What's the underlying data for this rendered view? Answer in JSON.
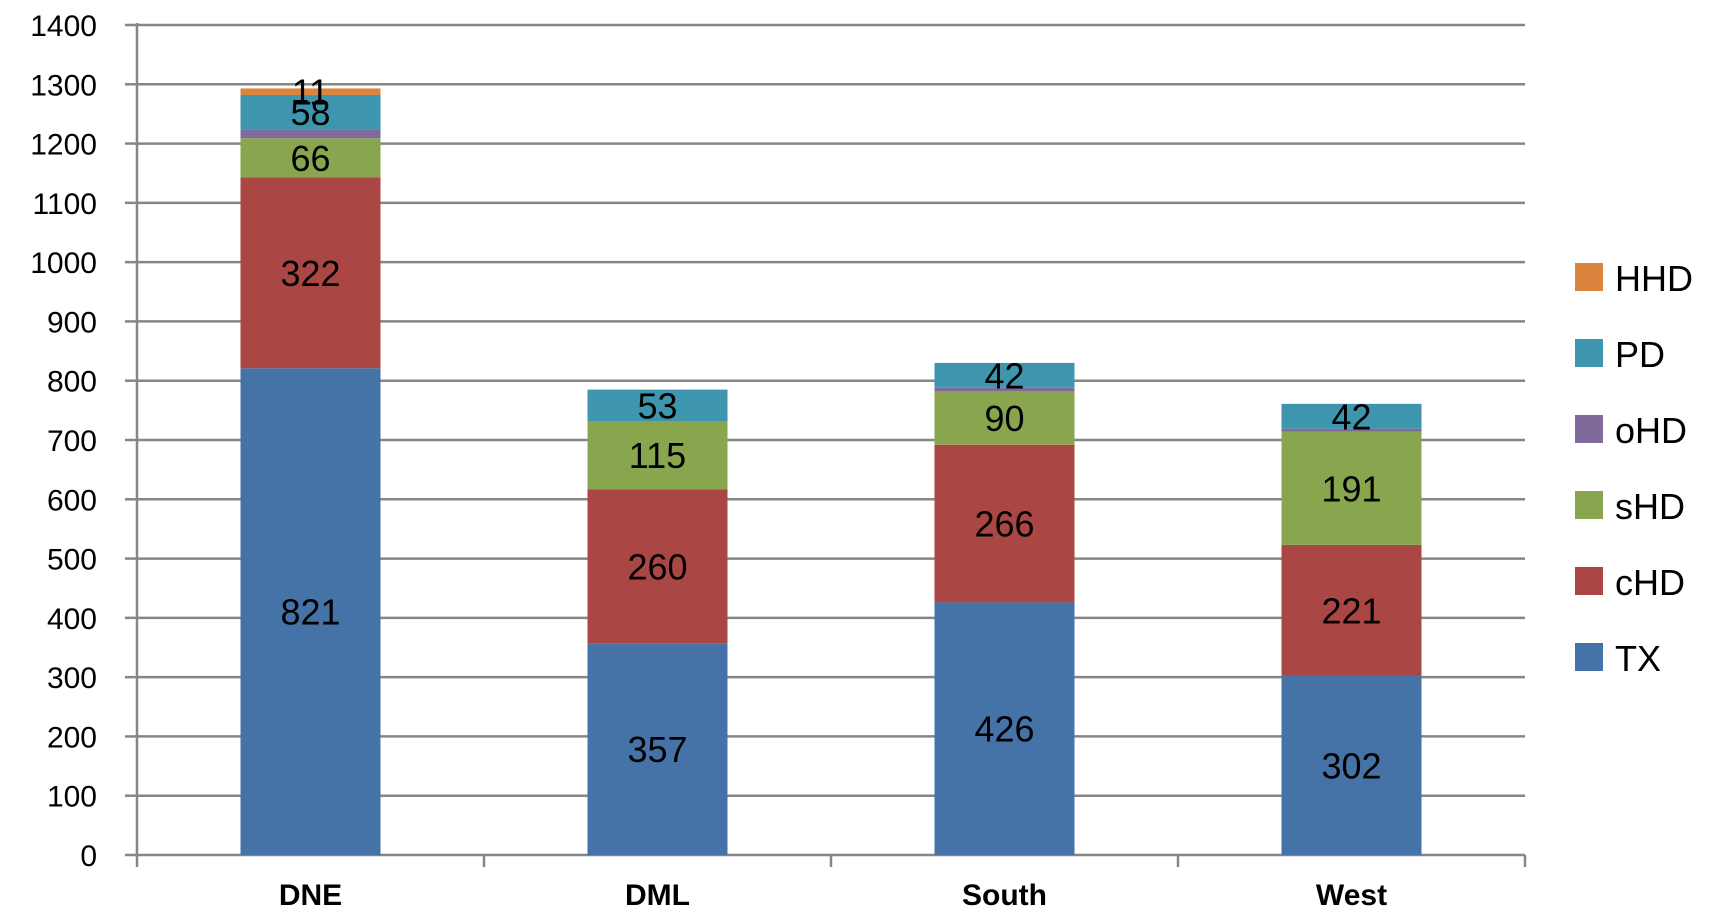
{
  "chart_data": {
    "type": "bar",
    "stacked": true,
    "categories": [
      "DNE",
      "DML",
      "South",
      "West"
    ],
    "series": [
      {
        "name": "TX",
        "color": "#4572A7",
        "values": [
          821,
          357,
          426,
          302
        ],
        "labels": [
          "821",
          "357",
          "426",
          "302"
        ]
      },
      {
        "name": "cHD",
        "color": "#AA4643",
        "values": [
          322,
          260,
          266,
          221
        ],
        "labels": [
          "322",
          "260",
          "266",
          "221"
        ]
      },
      {
        "name": "sHD",
        "color": "#89A54E",
        "values": [
          66,
          115,
          90,
          191
        ],
        "labels": [
          "66",
          "115",
          "90",
          "191"
        ]
      },
      {
        "name": "oHD",
        "color": "#80699B",
        "values": [
          15,
          0,
          6,
          5
        ],
        "labels": [
          "",
          "",
          "",
          ""
        ]
      },
      {
        "name": "PD",
        "color": "#3D96AE",
        "values": [
          58,
          53,
          42,
          42
        ],
        "labels": [
          "58",
          "53",
          "42",
          "42"
        ]
      },
      {
        "name": "HHD",
        "color": "#DB843D",
        "values": [
          11,
          0,
          0,
          0
        ],
        "labels": [
          "11",
          "",
          "",
          ""
        ]
      }
    ],
    "ylim": [
      0,
      1400
    ],
    "yticks": [
      0,
      100,
      200,
      300,
      400,
      500,
      600,
      700,
      800,
      900,
      1000,
      1100,
      1200,
      1300,
      1400
    ],
    "title": "",
    "xlabel": "",
    "ylabel": "",
    "grid": true,
    "legend": {
      "position": "right",
      "order": [
        "HHD",
        "PD",
        "oHD",
        "sHD",
        "cHD",
        "TX"
      ]
    }
  }
}
